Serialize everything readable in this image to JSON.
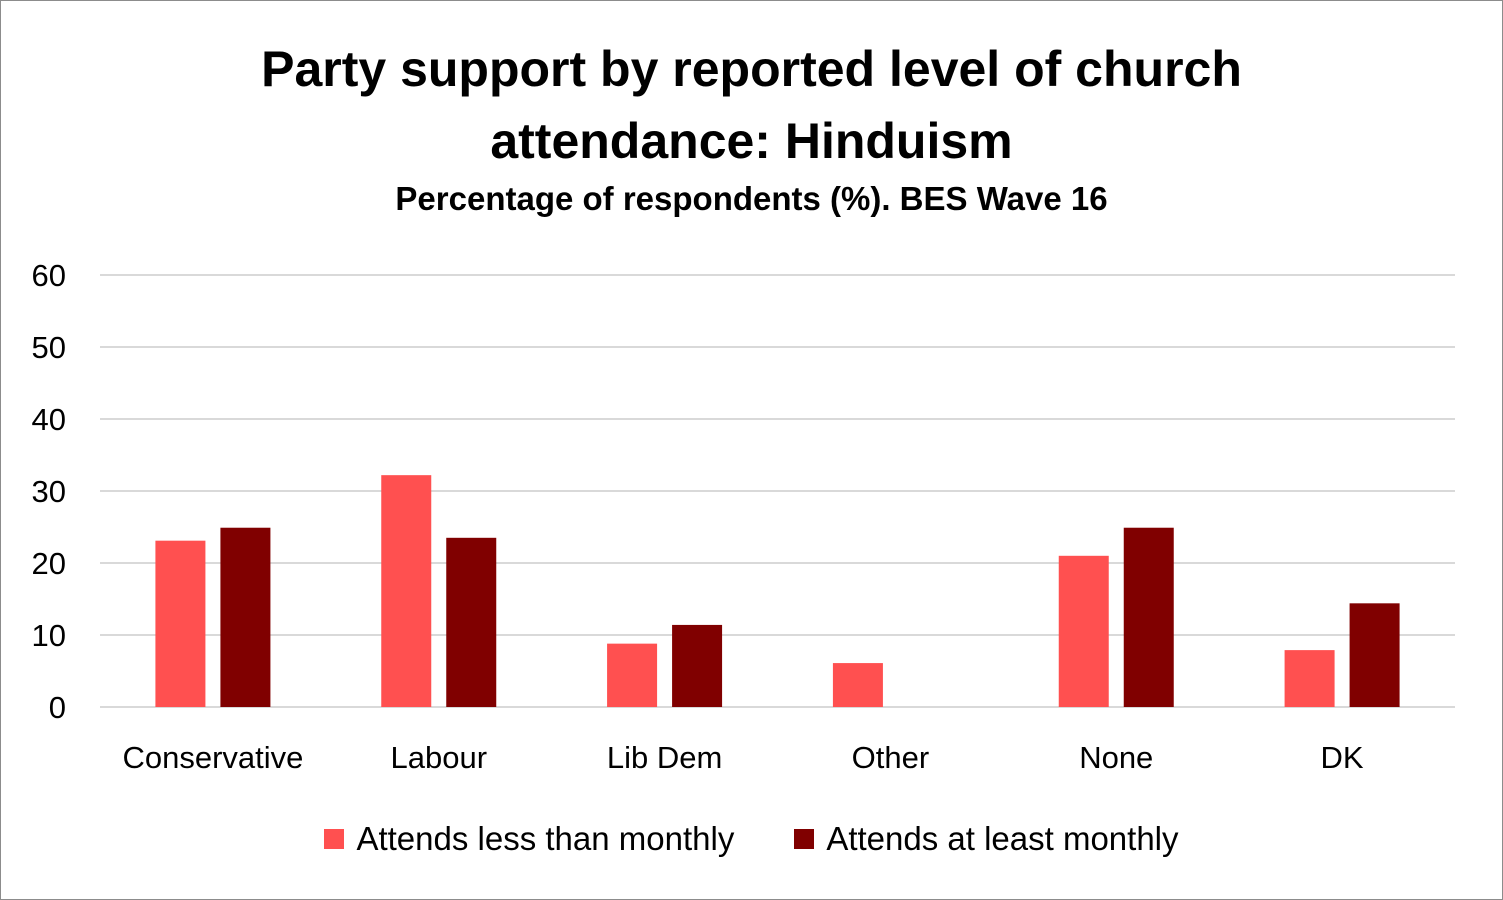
{
  "chart_data": {
    "type": "bar",
    "title": "Party support by reported level of church attendance: Hinduism",
    "title_lines": [
      "Party support by reported level of church",
      "attendance: Hinduism"
    ],
    "subtitle": "Percentage of respondents (%). BES Wave 16",
    "xlabel": "",
    "ylabel": "",
    "ylim": [
      0,
      60
    ],
    "yticks": [
      "0",
      "10",
      "20",
      "30",
      "40",
      "50",
      "60"
    ],
    "grid": true,
    "legend_position": "bottom",
    "categories": [
      "Conservative",
      "Labour",
      "Lib Dem",
      "Other",
      "None",
      "DK"
    ],
    "series": [
      {
        "name": "Attends less than monthly",
        "color": "#FF5050",
        "values": [
          23.1,
          32.2,
          8.8,
          6.1,
          21.0,
          7.9
        ]
      },
      {
        "name": "Attends at least monthly",
        "color": "#800000",
        "values": [
          24.9,
          23.5,
          11.4,
          0,
          24.9,
          14.4
        ]
      }
    ]
  }
}
